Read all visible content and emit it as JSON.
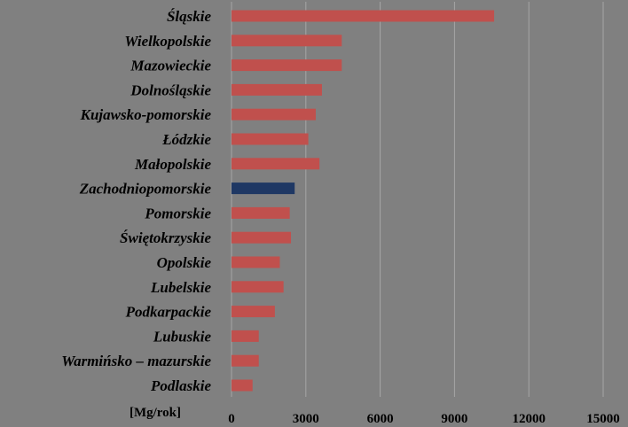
{
  "chart_data": {
    "type": "bar",
    "orientation": "horizontal",
    "categories": [
      "Śląskie",
      "Wielkopolskie",
      "Mazowieckie",
      "Dolnośląskie",
      "Kujawsko-pomorskie",
      "Łódzkie",
      "Małopolskie",
      "Zachodniopomorskie",
      "Pomorskie",
      "Świętokrzyskie",
      "Opolskie",
      "Lubelskie",
      "Podkarpackie",
      "Lubuskie",
      "Warmińsko – mazurskie",
      "Podlaskie"
    ],
    "values": [
      10600,
      4450,
      4450,
      3650,
      3400,
      3100,
      3550,
      2550,
      2350,
      2400,
      1950,
      2100,
      1750,
      1100,
      1100,
      850
    ],
    "highlight_index": 7,
    "colors": {
      "default": "#C0504D",
      "highlight": "#1F3864",
      "grid": "#A6A6A6"
    },
    "unit_label": "[Mg/rok]",
    "x_ticks": [
      0,
      3000,
      6000,
      9000,
      12000,
      15000
    ],
    "x_tick_labels": [
      "0",
      "3000",
      "6000",
      "9000",
      "12000",
      "15000"
    ],
    "xlim": [
      0,
      15000
    ],
    "grid": true,
    "title": "",
    "xlabel": "",
    "ylabel": ""
  }
}
